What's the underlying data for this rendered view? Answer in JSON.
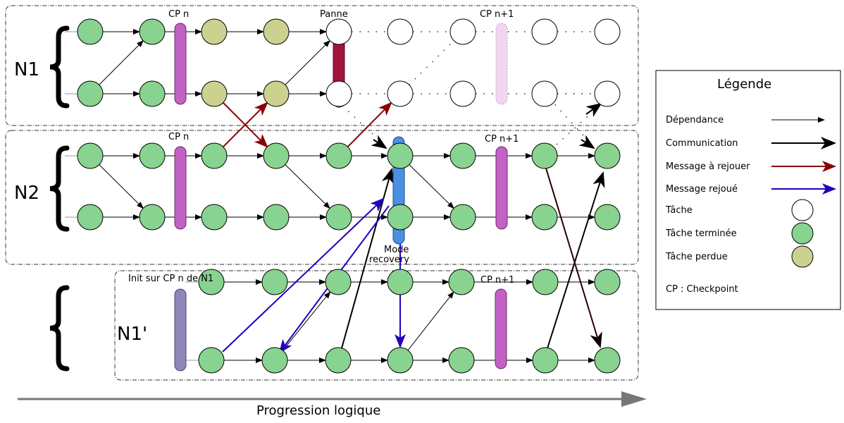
{
  "groups": {
    "n1": "N1",
    "n2": "N2",
    "n1p": "N1'"
  },
  "labels": {
    "cp_n_top": "CP n",
    "panne": "Panne",
    "cp_n1_top": "CP n+1",
    "cp_n_mid": "CP n",
    "cp_n1_mid": "CP n+1",
    "mode_line1": "Mode",
    "mode_line2": "recovery",
    "init": "Init sur CP n de N1",
    "cp_n1_bottom": "CP n+1"
  },
  "legend": {
    "title": "Légende",
    "dependance": "Dépendance",
    "communication": "Communication",
    "message_rejouer": "Message à rejouer",
    "message_rejoue": "Message rejoué",
    "tache": "Tâche",
    "tache_terminee": "Tâche terminée",
    "tache_perdue": "Tâche perdue",
    "checkpoint": "CP : Checkpoint"
  },
  "progression": "Progression logique",
  "colors": {
    "done": "#88d38f",
    "lost": "#cdd18f",
    "checkpoint": "#c262c4",
    "checkpoint_future": "#f0d6f0",
    "fault": "#a0153e",
    "recovery": "#4a90e2",
    "init": "#8e88b8",
    "replay_arrow": "#8b0000",
    "replayed_arrow": "#2200bb"
  }
}
